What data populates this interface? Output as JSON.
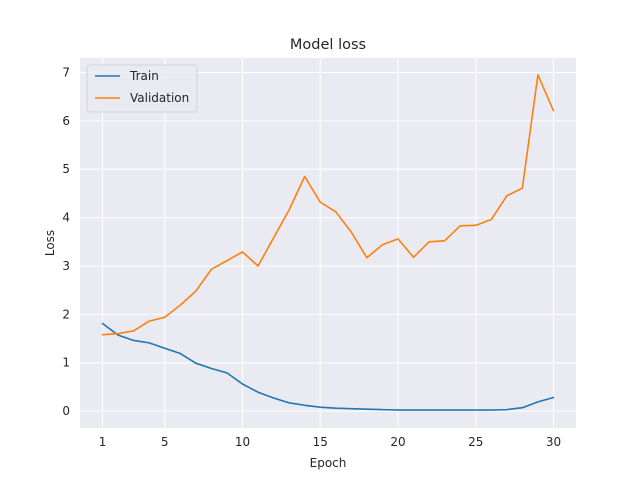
{
  "chart_data": {
    "type": "line",
    "title": "Model loss",
    "xlabel": "Epoch",
    "ylabel": "Loss",
    "xlim": [
      -0.45,
      31.45
    ],
    "ylim": [
      -0.35,
      7.3
    ],
    "xticks": [
      1,
      5,
      10,
      15,
      20,
      25,
      30
    ],
    "yticks": [
      0,
      1,
      2,
      3,
      4,
      5,
      6,
      7
    ],
    "grid": true,
    "legend_position": "top-left",
    "x": [
      1,
      2,
      3,
      4,
      5,
      6,
      7,
      8,
      9,
      10,
      11,
      12,
      13,
      14,
      15,
      16,
      17,
      18,
      19,
      20,
      21,
      22,
      23,
      24,
      25,
      26,
      27,
      28,
      29,
      30
    ],
    "series": [
      {
        "name": "Train",
        "color": "#1f77b4",
        "values": [
          1.81,
          1.57,
          1.46,
          1.41,
          1.3,
          1.19,
          0.99,
          0.88,
          0.79,
          0.56,
          0.39,
          0.27,
          0.17,
          0.12,
          0.08,
          0.06,
          0.05,
          0.04,
          0.03,
          0.02,
          0.02,
          0.02,
          0.02,
          0.02,
          0.02,
          0.02,
          0.03,
          0.07,
          0.19,
          0.28
        ]
      },
      {
        "name": "Validation",
        "color": "#ff7f0e",
        "values": [
          1.58,
          1.6,
          1.66,
          1.86,
          1.94,
          2.19,
          2.48,
          2.93,
          3.11,
          3.29,
          3.0,
          3.58,
          4.16,
          4.85,
          4.32,
          4.12,
          3.7,
          3.17,
          3.44,
          3.56,
          3.18,
          3.5,
          3.52,
          3.83,
          3.84,
          3.96,
          4.45,
          4.61,
          6.95,
          6.21
        ]
      }
    ]
  }
}
